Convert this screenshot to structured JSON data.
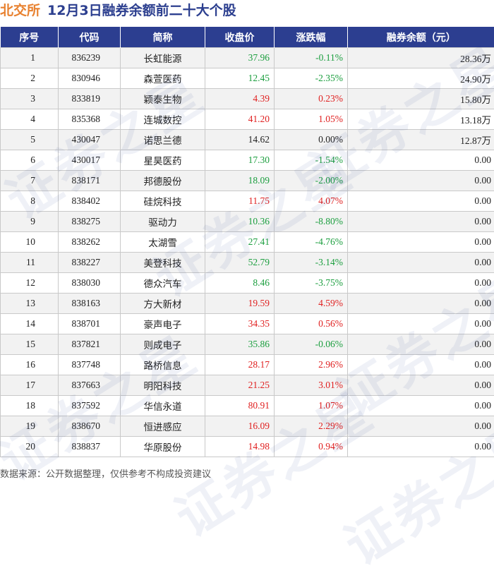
{
  "header": {
    "brand": "北交所",
    "title": "12月3日融券余额前二十大个股"
  },
  "table": {
    "columns": [
      "序号",
      "代码",
      "简称",
      "收盘价",
      "涨跌幅",
      "融券余额（元）"
    ],
    "rows": [
      {
        "idx": "1",
        "code": "836239",
        "name": "长虹能源",
        "close": "37.96",
        "change": "-0.11%",
        "balance": "28.36万"
      },
      {
        "idx": "2",
        "code": "830946",
        "name": "森萱医药",
        "close": "12.45",
        "change": "-2.35%",
        "balance": "24.90万"
      },
      {
        "idx": "3",
        "code": "833819",
        "name": "颖泰生物",
        "close": "4.39",
        "change": "0.23%",
        "balance": "15.80万"
      },
      {
        "idx": "4",
        "code": "835368",
        "name": "连城数控",
        "close": "41.20",
        "change": "1.05%",
        "balance": "13.18万"
      },
      {
        "idx": "5",
        "code": "430047",
        "name": "诺思兰德",
        "close": "14.62",
        "change": "0.00%",
        "balance": "12.87万"
      },
      {
        "idx": "6",
        "code": "430017",
        "name": "星昊医药",
        "close": "17.30",
        "change": "-1.54%",
        "balance": "0.00"
      },
      {
        "idx": "7",
        "code": "838171",
        "name": "邦德股份",
        "close": "18.09",
        "change": "-2.00%",
        "balance": "0.00"
      },
      {
        "idx": "8",
        "code": "838402",
        "name": "硅烷科技",
        "close": "11.75",
        "change": "4.07%",
        "balance": "0.00"
      },
      {
        "idx": "9",
        "code": "838275",
        "name": "驱动力",
        "close": "10.36",
        "change": "-8.80%",
        "balance": "0.00"
      },
      {
        "idx": "10",
        "code": "838262",
        "name": "太湖雪",
        "close": "27.41",
        "change": "-4.76%",
        "balance": "0.00"
      },
      {
        "idx": "11",
        "code": "838227",
        "name": "美登科技",
        "close": "52.79",
        "change": "-3.14%",
        "balance": "0.00"
      },
      {
        "idx": "12",
        "code": "838030",
        "name": "德众汽车",
        "close": "8.46",
        "change": "-3.75%",
        "balance": "0.00"
      },
      {
        "idx": "13",
        "code": "838163",
        "name": "方大新材",
        "close": "19.59",
        "change": "4.59%",
        "balance": "0.00"
      },
      {
        "idx": "14",
        "code": "838701",
        "name": "豪声电子",
        "close": "34.35",
        "change": "0.56%",
        "balance": "0.00"
      },
      {
        "idx": "15",
        "code": "837821",
        "name": "则成电子",
        "close": "35.86",
        "change": "-0.06%",
        "balance": "0.00"
      },
      {
        "idx": "16",
        "code": "837748",
        "name": "路桥信息",
        "close": "28.17",
        "change": "2.96%",
        "balance": "0.00"
      },
      {
        "idx": "17",
        "code": "837663",
        "name": "明阳科技",
        "close": "21.25",
        "change": "3.01%",
        "balance": "0.00"
      },
      {
        "idx": "18",
        "code": "837592",
        "name": "华信永道",
        "close": "80.91",
        "change": "1.07%",
        "balance": "0.00"
      },
      {
        "idx": "19",
        "code": "838670",
        "name": "恒进感应",
        "close": "16.09",
        "change": "2.29%",
        "balance": "0.00"
      },
      {
        "idx": "20",
        "code": "838837",
        "name": "华原股份",
        "close": "14.98",
        "change": "0.94%",
        "balance": "0.00"
      }
    ]
  },
  "footer": {
    "note": "数据来源：公开数据整理，仅供参考不构成投资建议"
  },
  "watermark": {
    "text": "证券之星"
  },
  "colors": {
    "header_bg": "#2c3e90",
    "brand": "#e8812f",
    "title": "#2c3f8f",
    "up": "#e02020",
    "down": "#1b9e3e",
    "zebra": "#f2f2f2"
  }
}
